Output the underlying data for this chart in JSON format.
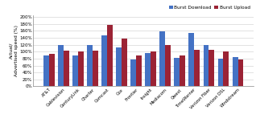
{
  "categories": [
    "AT&T",
    "Cablevision",
    "CenturyLink",
    "Charter",
    "Comcast",
    "Cox",
    "Frontier",
    "Insight",
    "Mediacom",
    "Qwest",
    "TimeWarner",
    "Verizon Fiber",
    "Verizon DSL",
    "Windstream"
  ],
  "burst_download": [
    88,
    120,
    90,
    120,
    148,
    112,
    78,
    97,
    158,
    83,
    153,
    120,
    80,
    85
  ],
  "burst_upload": [
    93,
    102,
    101,
    104,
    176,
    138,
    90,
    101,
    120,
    88,
    105,
    106,
    101,
    78
  ],
  "download_color": "#4472C4",
  "upload_color": "#9B2335",
  "ylabel": "Actual/\nAdvertised speed (%)",
  "yticks": [
    0,
    20,
    40,
    60,
    80,
    100,
    120,
    140,
    160,
    180,
    200
  ],
  "ytick_labels": [
    "0%",
    "20%",
    "40%",
    "60%",
    "80%",
    "100%",
    "120%",
    "140%",
    "160%",
    "180%",
    "200%"
  ],
  "legend_download": "Burst Download",
  "legend_upload": "Burst Upload",
  "background_color": "#FFFFFF",
  "grid_color": "#CCCCCC",
  "ylim": [
    0,
    205
  ]
}
